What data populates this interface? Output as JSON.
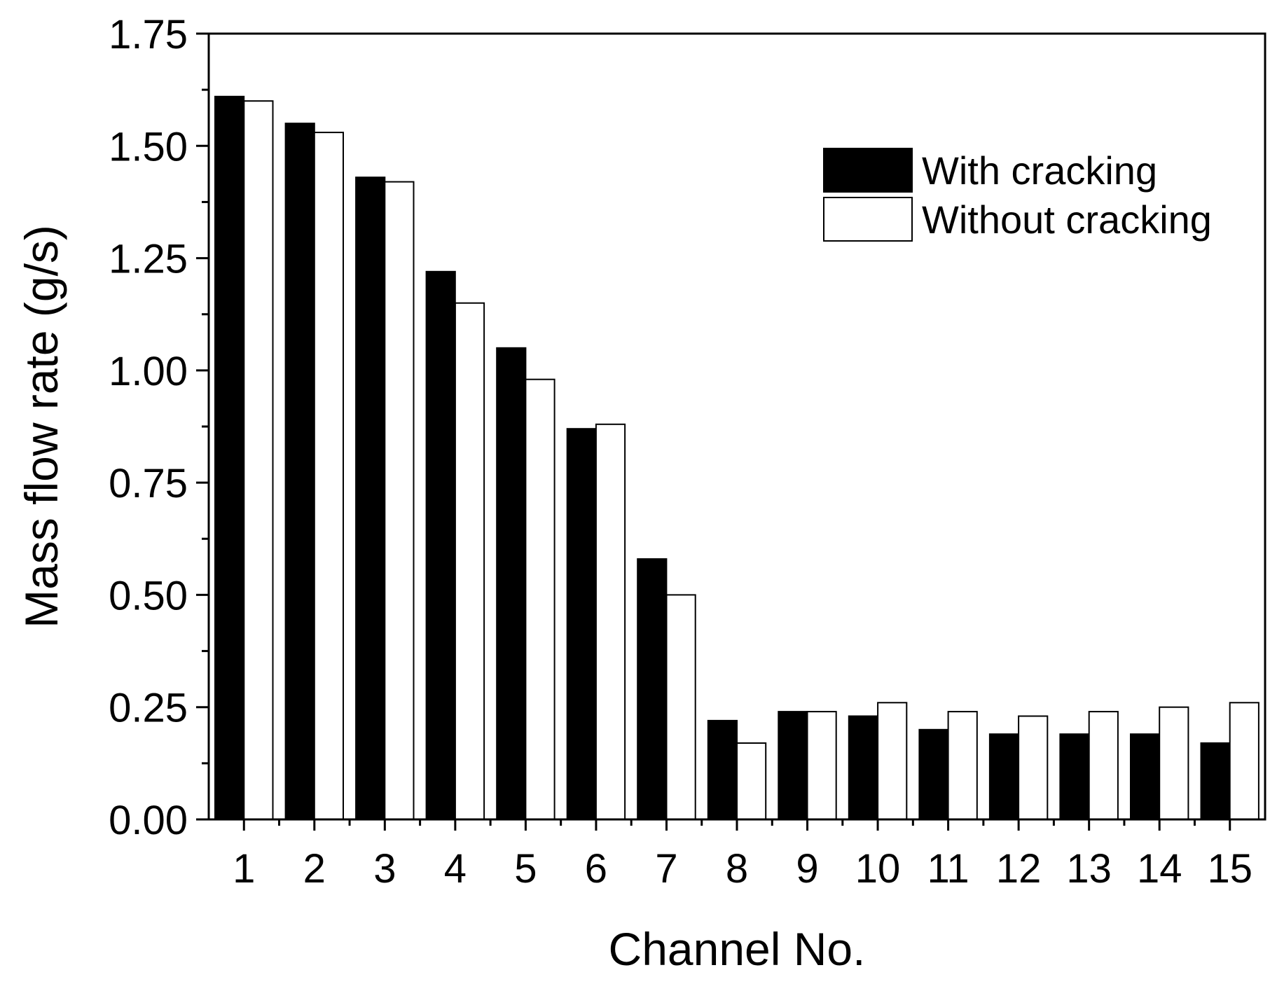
{
  "chart_data": {
    "type": "bar",
    "xlabel": "Channel No.",
    "ylabel": "Mass flow rate (g/s)",
    "ylim": [
      0,
      1.75
    ],
    "yticks": [
      "0.00",
      "0.25",
      "0.50",
      "0.75",
      "1.00",
      "1.25",
      "1.50",
      "1.75"
    ],
    "categories": [
      "1",
      "2",
      "3",
      "4",
      "5",
      "6",
      "7",
      "8",
      "9",
      "10",
      "11",
      "12",
      "13",
      "14",
      "15"
    ],
    "legend_position": "top-right",
    "series": [
      {
        "name": "With cracking",
        "fill": "#000000",
        "values": [
          1.61,
          1.55,
          1.43,
          1.22,
          1.05,
          0.87,
          0.58,
          0.22,
          0.24,
          0.23,
          0.2,
          0.19,
          0.19,
          0.19,
          0.17
        ]
      },
      {
        "name": "Without cracking",
        "fill": "#ffffff",
        "values": [
          1.6,
          1.53,
          1.42,
          1.15,
          0.98,
          0.88,
          0.5,
          0.17,
          0.24,
          0.26,
          0.24,
          0.23,
          0.24,
          0.25,
          0.26
        ]
      }
    ]
  }
}
